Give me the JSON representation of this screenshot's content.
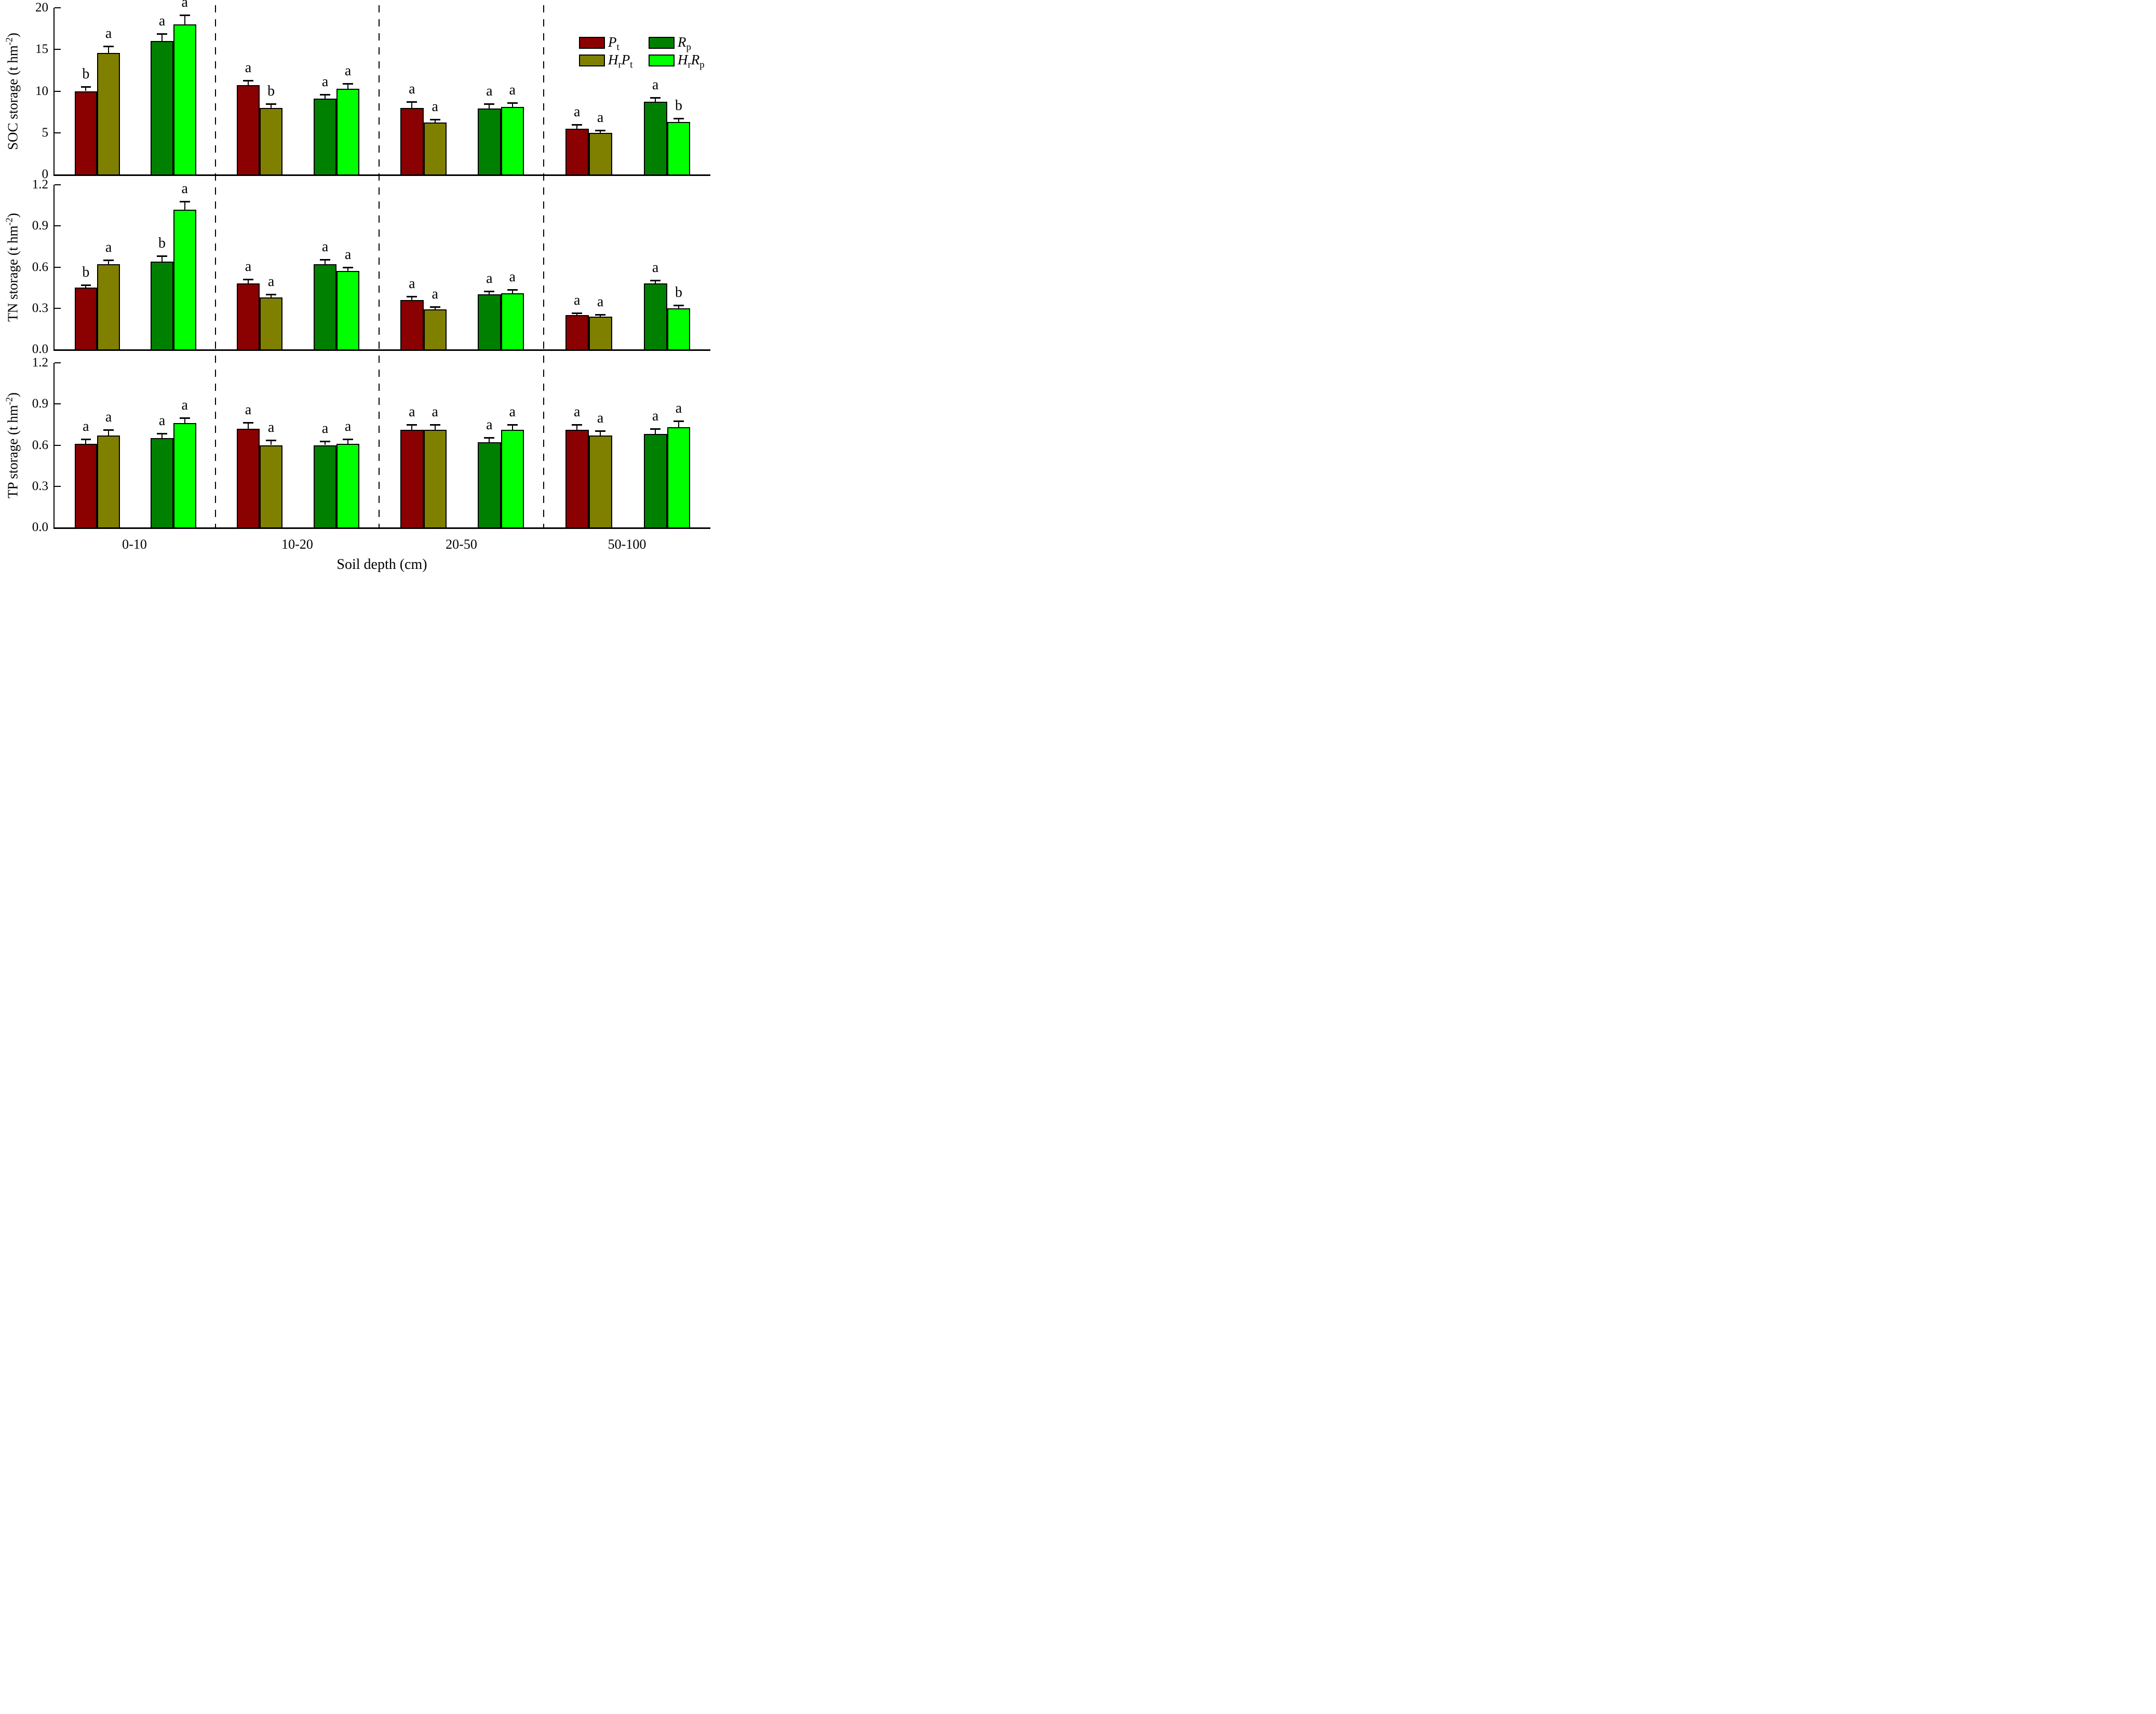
{
  "chart_data": {
    "type": "bar",
    "title": "",
    "xlabel": "Soil depth (cm)",
    "categories": [
      "0-10",
      "10-20",
      "20-50",
      "50-100"
    ],
    "unit": {
      "pre": "(t hm",
      "sup": "-2",
      "post": ")"
    },
    "grid": "off",
    "legend_position": "top-right-of-first-panel",
    "series_meta": [
      {
        "id": "Pt",
        "color": "#8b0000",
        "label_parts": [
          [
            "P",
            "t"
          ]
        ]
      },
      {
        "id": "HrPt",
        "color": "#808000",
        "label_parts": [
          [
            "H",
            "r"
          ],
          [
            "P",
            "t"
          ]
        ]
      },
      {
        "id": "Rp",
        "color": "#008000",
        "label_parts": [
          [
            "R",
            "p"
          ]
        ]
      },
      {
        "id": "HrRp",
        "color": "#00ff00",
        "label_parts": [
          [
            "H",
            "r"
          ],
          [
            "R",
            "p"
          ]
        ]
      }
    ],
    "panels": [
      {
        "name": "SOC",
        "ylabel": "SOC storage",
        "ylim": [
          0,
          20
        ],
        "tick_values": [
          0,
          5,
          10,
          15,
          20
        ],
        "tick_labels": [
          "0",
          "5",
          "10",
          "15",
          "20"
        ],
        "series": [
          {
            "id": "Pt",
            "values": [
              10.0,
              10.7,
              8.0,
              5.5
            ],
            "errors": [
              0.5,
              0.6,
              0.7,
              0.5
            ],
            "letters": [
              "b",
              "a",
              "a",
              "a"
            ]
          },
          {
            "id": "HrPt",
            "values": [
              14.6,
              8.0,
              6.2,
              5.0
            ],
            "errors": [
              0.8,
              0.5,
              0.4,
              0.3
            ],
            "letters": [
              "a",
              "b",
              "a",
              "a"
            ]
          },
          {
            "id": "Rp",
            "values": [
              16.0,
              9.1,
              7.9,
              8.7
            ],
            "errors": [
              0.9,
              0.5,
              0.6,
              0.5
            ],
            "letters": [
              "a",
              "a",
              "a",
              "a"
            ]
          },
          {
            "id": "HrRp",
            "values": [
              18.0,
              10.3,
              8.1,
              6.3
            ],
            "errors": [
              1.1,
              0.6,
              0.5,
              0.4
            ],
            "letters": [
              "a",
              "a",
              "a",
              "b"
            ]
          }
        ]
      },
      {
        "name": "TN",
        "ylabel": "TN storage",
        "ylim": [
          0,
          1.2
        ],
        "tick_values": [
          0,
          0.3,
          0.6,
          0.9,
          1.2
        ],
        "tick_labels": [
          "0.0",
          "0.3",
          "0.6",
          "0.9",
          "1.2"
        ],
        "series": [
          {
            "id": "Pt",
            "values": [
              0.45,
              0.48,
              0.36,
              0.25
            ],
            "errors": [
              0.02,
              0.03,
              0.025,
              0.015
            ],
            "letters": [
              "b",
              "a",
              "a",
              "a"
            ]
          },
          {
            "id": "HrPt",
            "values": [
              0.62,
              0.38,
              0.29,
              0.24
            ],
            "errors": [
              0.03,
              0.02,
              0.02,
              0.012
            ],
            "letters": [
              "a",
              "a",
              "a",
              "a"
            ]
          },
          {
            "id": "Rp",
            "values": [
              0.64,
              0.62,
              0.4,
              0.48
            ],
            "errors": [
              0.04,
              0.035,
              0.025,
              0.025
            ],
            "letters": [
              "b",
              "a",
              "a",
              "a"
            ]
          },
          {
            "id": "HrRp",
            "values": [
              1.02,
              0.57,
              0.41,
              0.3
            ],
            "errors": [
              0.06,
              0.03,
              0.025,
              0.02
            ],
            "letters": [
              "a",
              "a",
              "a",
              "b"
            ]
          }
        ]
      },
      {
        "name": "TP",
        "ylabel": "TP storage",
        "ylim": [
          0,
          1.2
        ],
        "tick_values": [
          0,
          0.3,
          0.6,
          0.9,
          1.2
        ],
        "tick_labels": [
          "0.0",
          "0.3",
          "0.6",
          "0.9",
          "1.2"
        ],
        "series": [
          {
            "id": "Pt",
            "values": [
              0.61,
              0.72,
              0.71,
              0.71
            ],
            "errors": [
              0.035,
              0.045,
              0.04,
              0.04
            ],
            "letters": [
              "a",
              "a",
              "a",
              "a"
            ]
          },
          {
            "id": "HrPt",
            "values": [
              0.67,
              0.6,
              0.71,
              0.67
            ],
            "errors": [
              0.04,
              0.035,
              0.04,
              0.035
            ],
            "letters": [
              "a",
              "a",
              "a",
              "a"
            ]
          },
          {
            "id": "Rp",
            "values": [
              0.65,
              0.6,
              0.62,
              0.68
            ],
            "errors": [
              0.035,
              0.03,
              0.035,
              0.04
            ],
            "letters": [
              "a",
              "a",
              "a",
              "a"
            ]
          },
          {
            "id": "HrRp",
            "values": [
              0.76,
              0.61,
              0.71,
              0.73
            ],
            "errors": [
              0.04,
              0.035,
              0.04,
              0.045
            ],
            "letters": [
              "a",
              "a",
              "a",
              "a"
            ]
          }
        ]
      }
    ]
  }
}
